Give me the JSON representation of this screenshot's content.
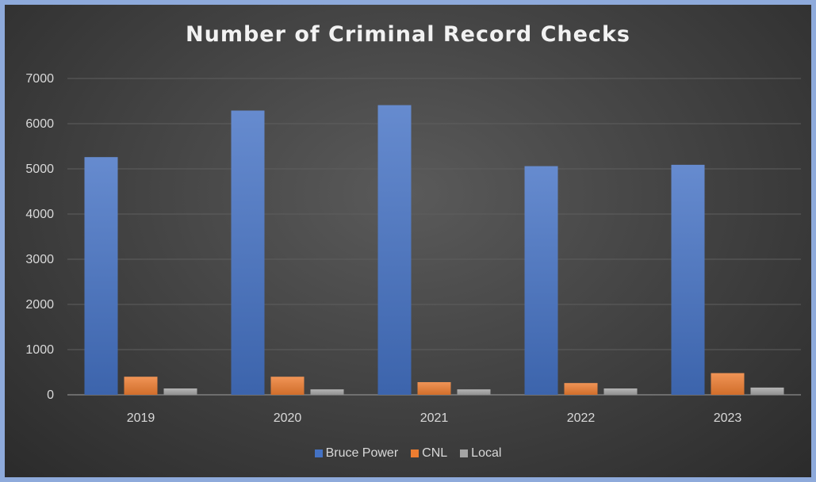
{
  "chart_data": {
    "type": "bar",
    "title": "Number of Criminal Record Checks",
    "categories": [
      "2019",
      "2020",
      "2021",
      "2022",
      "2023"
    ],
    "series": [
      {
        "name": "Bruce Power",
        "values": [
          5260,
          6290,
          6410,
          5060,
          5090
        ],
        "color": "#4472c4"
      },
      {
        "name": "CNL",
        "values": [
          400,
          400,
          280,
          260,
          480
        ],
        "color": "#ed7d31"
      },
      {
        "name": "Local",
        "values": [
          140,
          120,
          120,
          140,
          160
        ],
        "color": "#a5a5a5"
      }
    ],
    "yticks": [
      "0",
      "1000",
      "2000",
      "3000",
      "4000",
      "5000",
      "6000",
      "7000"
    ],
    "ylim": [
      0,
      7000
    ],
    "grid": true,
    "legend_position": "bottom"
  }
}
